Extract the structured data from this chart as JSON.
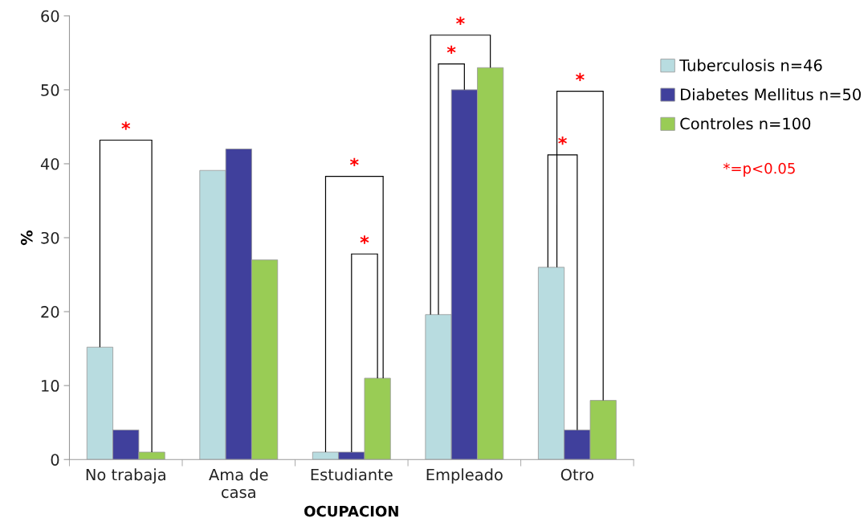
{
  "chart_data": {
    "type": "bar",
    "xlabel": "OCUPACION",
    "ylabel": "%",
    "categories": [
      "No trabaja",
      "Ama de\ncasa",
      "Estudiante",
      "Empleado",
      "Otro"
    ],
    "series": [
      {
        "name": "Tuberculosis n=46",
        "color": "#b8dce0",
        "values": [
          15.2,
          39.1,
          1,
          19.6,
          26
        ]
      },
      {
        "name": "Diabetes Mellitus n=50",
        "color": "#40409c",
        "values": [
          4,
          42,
          1,
          50,
          4
        ]
      },
      {
        "name": "Controles n=100",
        "color": "#99cc55",
        "values": [
          1,
          27,
          11,
          53,
          8
        ]
      }
    ],
    "ylim": [
      0,
      60
    ],
    "yticks": [
      0,
      10,
      20,
      30,
      40,
      50,
      60
    ],
    "grid": false,
    "legend": "top right",
    "annotations": [
      "*",
      "*",
      "*",
      "*",
      "*",
      "*",
      "*",
      "*=p<0.05"
    ]
  }
}
